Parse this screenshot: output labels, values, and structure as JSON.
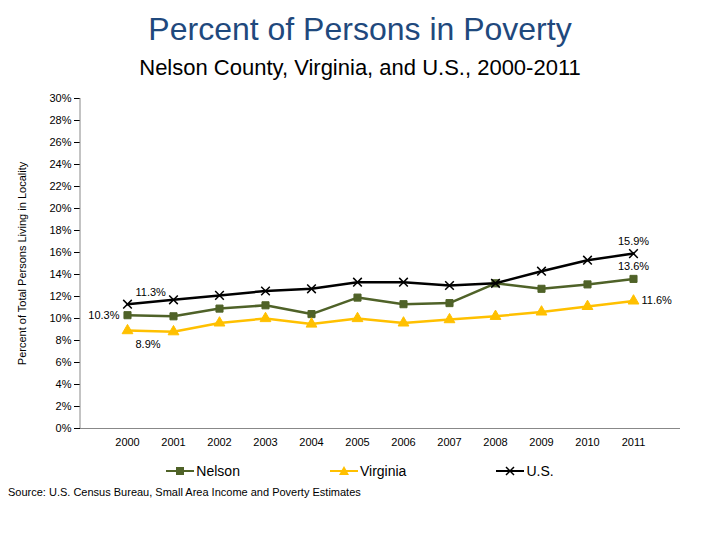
{
  "chart_data": {
    "type": "line",
    "title": "Percent of Persons in Poverty",
    "subtitle": "Nelson County, Virginia, and U.S., 2000-2011",
    "ylabel": "Percent of Total Persons Living in Locality",
    "caption": "Source: U.S. Census Bureau, Small Area Income and Poverty Estimates",
    "categories": [
      "2000",
      "2001",
      "2002",
      "2003",
      "2004",
      "2005",
      "2006",
      "2007",
      "2008",
      "2009",
      "2010",
      "2011"
    ],
    "series": [
      {
        "name": "Nelson",
        "color": "#4f6228",
        "marker": "square",
        "values": [
          10.3,
          10.2,
          10.9,
          11.2,
          10.4,
          11.9,
          11.3,
          11.4,
          13.2,
          12.7,
          13.1,
          13.6
        ],
        "value_labels": [
          "10.3%",
          null,
          null,
          null,
          null,
          null,
          null,
          null,
          null,
          null,
          null,
          "13.6%"
        ]
      },
      {
        "name": "Virginia",
        "color": "#ffc000",
        "marker": "triangle",
        "values": [
          8.9,
          8.8,
          9.6,
          10.0,
          9.5,
          10.0,
          9.6,
          9.9,
          10.2,
          10.6,
          11.1,
          11.6
        ],
        "value_labels": [
          "8.9%",
          null,
          null,
          null,
          null,
          null,
          null,
          null,
          null,
          null,
          null,
          "11.6%"
        ]
      },
      {
        "name": "U.S.",
        "color": "#000000",
        "marker": "x",
        "values": [
          11.3,
          11.7,
          12.1,
          12.5,
          12.7,
          13.3,
          13.3,
          13.0,
          13.2,
          14.3,
          15.3,
          15.9
        ],
        "value_labels": [
          "11.3%",
          null,
          null,
          null,
          null,
          null,
          null,
          null,
          null,
          null,
          null,
          "15.9%"
        ]
      }
    ],
    "ylim": [
      0,
      30
    ],
    "yticks": [
      {
        "value": 0,
        "label": "0%"
      },
      {
        "value": 2,
        "label": "2%"
      },
      {
        "value": 4,
        "label": "4%"
      },
      {
        "value": 6,
        "label": "6%"
      },
      {
        "value": 8,
        "label": "8%"
      },
      {
        "value": 10,
        "label": "10%"
      },
      {
        "value": 12,
        "label": "12%"
      },
      {
        "value": 14,
        "label": "14%"
      },
      {
        "value": 16,
        "label": "16%"
      },
      {
        "value": 18,
        "label": "18%"
      },
      {
        "value": 20,
        "label": "20%"
      },
      {
        "value": 22,
        "label": "22%"
      },
      {
        "value": 24,
        "label": "24%"
      },
      {
        "value": 26,
        "label": "26%"
      },
      {
        "value": 28,
        "label": "28%"
      },
      {
        "value": 30,
        "label": "30%"
      }
    ],
    "grid": false,
    "legend": "bottom",
    "data_labels": true
  }
}
